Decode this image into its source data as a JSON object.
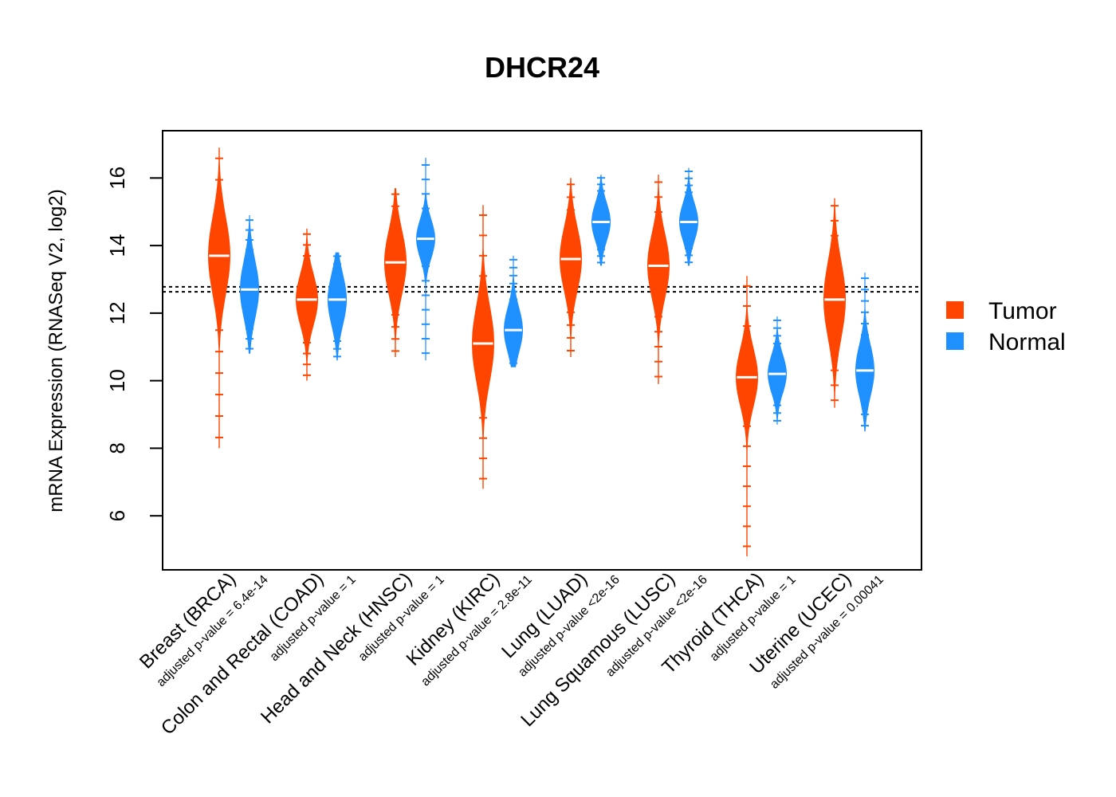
{
  "chart_data": {
    "type": "violin",
    "title": "DHCR24",
    "ylabel": "mRNA Expression (RNASeq V2, log2)",
    "ylim": [
      4.4,
      17.4
    ],
    "yticks": [
      6,
      8,
      10,
      12,
      14,
      16
    ],
    "reference_lines": [
      12.63,
      12.78
    ],
    "series": [
      {
        "name": "Tumor",
        "color": "#FF4500"
      },
      {
        "name": "Normal",
        "color": "#1E90FF"
      }
    ],
    "categories": [
      {
        "label": "Breast (BRCA)",
        "pvalue_label": "adjusted p-value = 6.4e-14",
        "tumor": {
          "median": 13.7,
          "min": 8.0,
          "max": 16.9,
          "q1": 13.1,
          "q3": 14.3
        },
        "normal": {
          "median": 12.7,
          "min": 10.8,
          "max": 14.9,
          "q1": 12.3,
          "q3": 13.2
        }
      },
      {
        "label": "Colon and Rectal (COAD)",
        "pvalue_label": "adjusted p-value = 1",
        "tumor": {
          "median": 12.4,
          "min": 10.0,
          "max": 14.5,
          "q1": 12.0,
          "q3": 12.8
        },
        "normal": {
          "median": 12.4,
          "min": 10.6,
          "max": 13.8,
          "q1": 12.0,
          "q3": 12.8
        }
      },
      {
        "label": "Head and Neck (HNSC)",
        "pvalue_label": "adjusted p-value = 1",
        "tumor": {
          "median": 13.5,
          "min": 10.7,
          "max": 15.7,
          "q1": 13.0,
          "q3": 14.0
        },
        "normal": {
          "median": 14.2,
          "min": 10.6,
          "max": 16.6,
          "q1": 13.9,
          "q3": 14.5
        }
      },
      {
        "label": "Kidney (KIRC)",
        "pvalue_label": "adjusted p-value = 2.8e-11",
        "tumor": {
          "median": 11.1,
          "min": 6.8,
          "max": 15.2,
          "q1": 10.5,
          "q3": 11.7
        },
        "normal": {
          "median": 11.5,
          "min": 10.4,
          "max": 13.7,
          "q1": 11.2,
          "q3": 11.9
        }
      },
      {
        "label": "Lung (LUAD)",
        "pvalue_label": "adjusted p-value <2e-16",
        "tumor": {
          "median": 13.6,
          "min": 10.7,
          "max": 16.0,
          "q1": 13.1,
          "q3": 14.1
        },
        "normal": {
          "median": 14.7,
          "min": 13.4,
          "max": 16.1,
          "q1": 14.4,
          "q3": 15.0
        }
      },
      {
        "label": "Lung Squamous (LUSC)",
        "pvalue_label": "adjusted p-value <2e-16",
        "tumor": {
          "median": 13.4,
          "min": 9.9,
          "max": 16.1,
          "q1": 12.9,
          "q3": 13.9
        },
        "normal": {
          "median": 14.7,
          "min": 13.4,
          "max": 16.3,
          "q1": 14.4,
          "q3": 15.0
        }
      },
      {
        "label": "Thyroid (THCA)",
        "pvalue_label": "adjusted p-value = 1",
        "tumor": {
          "median": 10.1,
          "min": 4.8,
          "max": 13.1,
          "q1": 9.7,
          "q3": 10.6
        },
        "normal": {
          "median": 10.2,
          "min": 8.7,
          "max": 11.9,
          "q1": 9.9,
          "q3": 10.5
        }
      },
      {
        "label": "Uterine (UCEC)",
        "pvalue_label": "adjusted p-value = 0.00041",
        "tumor": {
          "median": 12.4,
          "min": 9.2,
          "max": 15.4,
          "q1": 11.8,
          "q3": 13.0
        },
        "normal": {
          "median": 10.3,
          "min": 8.5,
          "max": 13.2,
          "q1": 9.8,
          "q3": 10.6
        }
      }
    ],
    "legend": {
      "position": "right",
      "entries": [
        "Tumor",
        "Normal"
      ]
    },
    "grid": false
  }
}
